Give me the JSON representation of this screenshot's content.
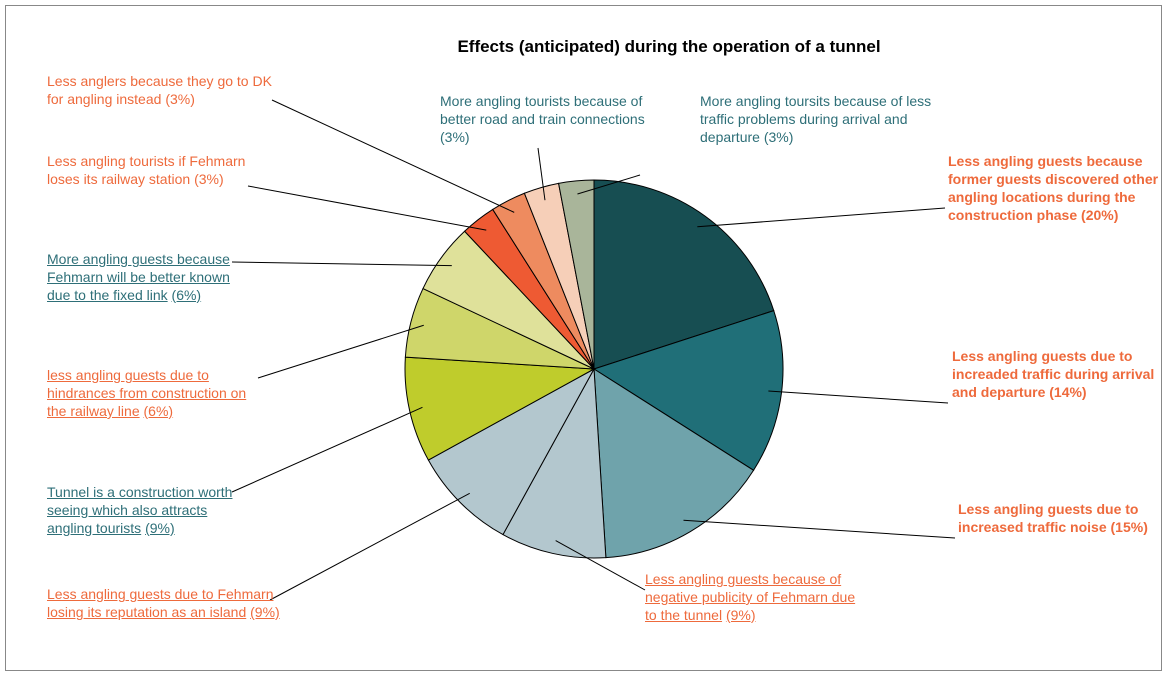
{
  "chart_data": {
    "type": "pie",
    "title": "Effects (anticipated) during the operation of a tunnel",
    "categories": [
      "Less angling guests because former guests discovered other angling locations during the construction phase",
      "Less angling guests due to increaded traffic during arrival and departure",
      "Less angling guests due to increased traffic noise",
      "Less angling guests because of negative publicity of Fehmarn due to the tunnel",
      "Less angling guests due to Fehmarn losing its reputation as an island",
      "Tunnel is a construction worth seeing which also attracts angling tourists",
      "less angling guests due to hindrances from construction on the railway line",
      "More angling guests because Fehmarn will be better known due to the fixed link",
      "Less angling tourists if Fehmarn loses its railway station",
      "Less anglers because they go to DK for angling instead",
      "More angling tourists because of better road and train connections",
      "More angling toursits because of less traffic problems during arrival and departure"
    ],
    "values": [
      20,
      14,
      15,
      9,
      9,
      9,
      6,
      6,
      3,
      3,
      3,
      3
    ],
    "value_labels": [
      "(20%)",
      "(14%)",
      "(15%)",
      "(9%)",
      "(9%)",
      "(9%)",
      "(6%)",
      "(6%)",
      "(3%)",
      "(3%)",
      "(3%)",
      "(3%)"
    ],
    "colors": [
      "#174e52",
      "#206f78",
      "#6fa3ab",
      "#b3c7ce",
      "#b3c7ce",
      "#bfcc2c",
      "#cfd66a",
      "#dfe19a",
      "#ee5a33",
      "#ee8b5f",
      "#f6cfb8",
      "#a9b59a"
    ],
    "label_colors": [
      "#ee6a3c",
      "#ee6a3c",
      "#ee6a3c",
      "#ee6a3c",
      "#ee6a3c",
      "#2e6f78",
      "#ee6a3c",
      "#2e6f78",
      "#ee6a3c",
      "#ee6a3c",
      "#2e6f78",
      "#2e6f78"
    ],
    "label_styles": [
      "bold",
      "bold",
      "bold",
      "underline",
      "underline",
      "underline",
      "underline",
      "underline",
      "plain",
      "plain",
      "plain",
      "plain"
    ]
  }
}
